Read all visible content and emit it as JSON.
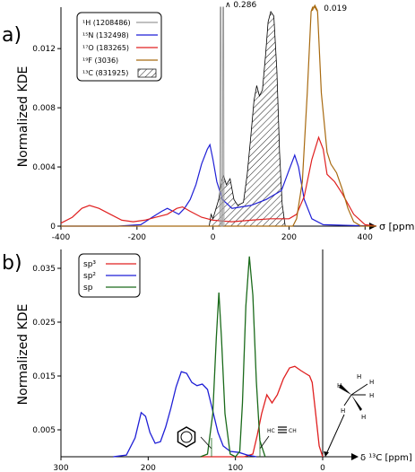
{
  "chart_data": [
    {
      "panel_label": "a)",
      "type": "line",
      "ylabel": "Normalized KDE",
      "xlabel": "σ [ppm]",
      "xlim": [
        -400,
        430
      ],
      "ylim": [
        0,
        0.0148
      ],
      "x_ticks": [
        "-400",
        "-200",
        "0",
        "200",
        "400"
      ],
      "y_ticks": [
        "0",
        "0.004",
        "0.008",
        "0.012"
      ],
      "legend_position": "top-left",
      "annotations": [
        {
          "text": "0.286",
          "x": 22,
          "y": 0.0148
        },
        {
          "text": "0.019",
          "x": 268,
          "y": 0.0148
        }
      ],
      "series": [
        {
          "name": "¹H (1208486)",
          "color": "#9a9a9a",
          "style": "line",
          "points": [
            [
              18,
              0
            ],
            [
              19,
              0.0148
            ],
            [
              21,
              0.0148
            ],
            [
              22,
              0
            ],
            [
              25,
              0
            ],
            [
              26,
              0.0148
            ],
            [
              28,
              0.0148
            ],
            [
              29,
              0
            ]
          ]
        },
        {
          "name": "¹⁵N (132498)",
          "color": "#1f1fd6",
          "style": "line",
          "points": [
            [
              -400,
              0
            ],
            [
              -250,
              0
            ],
            [
              -190,
              0.0001
            ],
            [
              -160,
              0.0006
            ],
            [
              -135,
              0.001
            ],
            [
              -120,
              0.0012
            ],
            [
              -105,
              0.001
            ],
            [
              -90,
              0.0008
            ],
            [
              -75,
              0.0012
            ],
            [
              -60,
              0.0018
            ],
            [
              -45,
              0.0028
            ],
            [
              -30,
              0.0042
            ],
            [
              -15,
              0.0052
            ],
            [
              -8,
              0.0055
            ],
            [
              0,
              0.0045
            ],
            [
              10,
              0.003
            ],
            [
              25,
              0.0018
            ],
            [
              50,
              0.0012
            ],
            [
              100,
              0.0014
            ],
            [
              140,
              0.0018
            ],
            [
              180,
              0.0024
            ],
            [
              200,
              0.0038
            ],
            [
              215,
              0.0048
            ],
            [
              225,
              0.004
            ],
            [
              240,
              0.0018
            ],
            [
              260,
              0.0005
            ],
            [
              290,
              0.0001
            ],
            [
              430,
              0
            ]
          ]
        },
        {
          "name": "¹⁷O (183265)",
          "color": "#e02020",
          "style": "line",
          "points": [
            [
              -400,
              0.0002
            ],
            [
              -370,
              0.0006
            ],
            [
              -345,
              0.0012
            ],
            [
              -325,
              0.0014
            ],
            [
              -300,
              0.0012
            ],
            [
              -270,
              0.0008
            ],
            [
              -240,
              0.0004
            ],
            [
              -210,
              0.0003
            ],
            [
              -180,
              0.0004
            ],
            [
              -150,
              0.0006
            ],
            [
              -120,
              0.0008
            ],
            [
              -95,
              0.0012
            ],
            [
              -80,
              0.0013
            ],
            [
              -60,
              0.001
            ],
            [
              -30,
              0.0006
            ],
            [
              0,
              0.0004
            ],
            [
              50,
              0.0003
            ],
            [
              100,
              0.0004
            ],
            [
              150,
              0.0005
            ],
            [
              200,
              0.0005
            ],
            [
              220,
              0.0008
            ],
            [
              240,
              0.002
            ],
            [
              260,
              0.0045
            ],
            [
              278,
              0.006
            ],
            [
              290,
              0.0052
            ],
            [
              300,
              0.0035
            ],
            [
              320,
              0.003
            ],
            [
              340,
              0.0022
            ],
            [
              370,
              0.0008
            ],
            [
              400,
              0.0001
            ],
            [
              430,
              0
            ]
          ]
        },
        {
          "name": "¹⁹F (3036)",
          "color": "#a86a10",
          "style": "line",
          "points": [
            [
              -400,
              0
            ],
            [
              210,
              0
            ],
            [
              220,
              0.0005
            ],
            [
              235,
              0.003
            ],
            [
              248,
              0.009
            ],
            [
              258,
              0.0145
            ],
            [
              262,
              0.0148
            ],
            [
              268,
              0.0148
            ],
            [
              275,
              0.0145
            ],
            [
              285,
              0.009
            ],
            [
              300,
              0.005
            ],
            [
              310,
              0.0042
            ],
            [
              325,
              0.0036
            ],
            [
              340,
              0.0025
            ],
            [
              355,
              0.0012
            ],
            [
              370,
              0.0003
            ],
            [
              390,
              0
            ],
            [
              430,
              0
            ]
          ]
        },
        {
          "name": "¹³C (831925)",
          "color": "#000000",
          "style": "hatched",
          "points": [
            [
              -10,
              0
            ],
            [
              -5,
              0.0008
            ],
            [
              0,
              0.0005
            ],
            [
              8,
              0.0012
            ],
            [
              15,
              0.0018
            ],
            [
              22,
              0.003
            ],
            [
              28,
              0.0034
            ],
            [
              35,
              0.0028
            ],
            [
              45,
              0.0032
            ],
            [
              55,
              0.0018
            ],
            [
              65,
              0.0014
            ],
            [
              80,
              0.0016
            ],
            [
              90,
              0.0035
            ],
            [
              100,
              0.0062
            ],
            [
              108,
              0.0085
            ],
            [
              115,
              0.0095
            ],
            [
              122,
              0.0088
            ],
            [
              130,
              0.0092
            ],
            [
              138,
              0.0115
            ],
            [
              145,
              0.0138
            ],
            [
              152,
              0.0145
            ],
            [
              160,
              0.0142
            ],
            [
              168,
              0.0105
            ],
            [
              175,
              0.005
            ],
            [
              182,
              0.0015
            ],
            [
              190,
              0
            ]
          ]
        }
      ]
    },
    {
      "panel_label": "b)",
      "type": "line",
      "ylabel": "Normalized KDE",
      "xlabel": "δ ¹³C [ppm]",
      "x_reversed": true,
      "xlim": [
        -10,
        300
      ],
      "ylim": [
        0,
        0.0385
      ],
      "x_ticks": [
        "300",
        "200",
        "100",
        "0"
      ],
      "y_ticks": [
        "0.005",
        "0.015",
        "0.025",
        "0.035"
      ],
      "legend_position": "top-left",
      "structure_labels": [
        "HC",
        "CH",
        "H",
        "H",
        "H",
        "H",
        "H",
        "H"
      ],
      "series": [
        {
          "name": "sp³",
          "color": "#e02020",
          "style": "line",
          "points": [
            [
              140,
              0
            ],
            [
              90,
              0
            ],
            [
              80,
              0.0005
            ],
            [
              75,
              0.004
            ],
            [
              70,
              0.008
            ],
            [
              64,
              0.0115
            ],
            [
              58,
              0.01
            ],
            [
              52,
              0.0115
            ],
            [
              45,
              0.0145
            ],
            [
              38,
              0.0165
            ],
            [
              32,
              0.0168
            ],
            [
              25,
              0.016
            ],
            [
              20,
              0.0155
            ],
            [
              15,
              0.015
            ],
            [
              12,
              0.0138
            ],
            [
              8,
              0.008
            ],
            [
              4,
              0.002
            ],
            [
              0,
              0
            ]
          ]
        },
        {
          "name": "sp²",
          "color": "#1f1fd6",
          "style": "line",
          "points": [
            [
              240,
              0
            ],
            [
              225,
              0.0003
            ],
            [
              215,
              0.0035
            ],
            [
              208,
              0.0082
            ],
            [
              203,
              0.0075
            ],
            [
              198,
              0.0045
            ],
            [
              192,
              0.0025
            ],
            [
              186,
              0.0028
            ],
            [
              180,
              0.0055
            ],
            [
              174,
              0.009
            ],
            [
              168,
              0.013
            ],
            [
              162,
              0.0158
            ],
            [
              156,
              0.0155
            ],
            [
              150,
              0.0138
            ],
            [
              144,
              0.0132
            ],
            [
              138,
              0.0135
            ],
            [
              132,
              0.0125
            ],
            [
              126,
              0.0085
            ],
            [
              120,
              0.0045
            ],
            [
              114,
              0.002
            ],
            [
              106,
              0.001
            ],
            [
              96,
              0.0008
            ],
            [
              86,
              0.0003
            ],
            [
              76,
              0
            ]
          ]
        },
        {
          "name": "sp",
          "color": "#1a6a1a",
          "style": "line",
          "points": [
            [
              140,
              0
            ],
            [
              132,
              0.0005
            ],
            [
              126,
              0.008
            ],
            [
              122,
              0.022
            ],
            [
              119,
              0.0305
            ],
            [
              116,
              0.022
            ],
            [
              112,
              0.008
            ],
            [
              106,
              0.0005
            ],
            [
              100,
              0
            ],
            [
              95,
              0.001
            ],
            [
              92,
              0.01
            ],
            [
              88,
              0.028
            ],
            [
              84,
              0.0372
            ],
            [
              80,
              0.03
            ],
            [
              76,
              0.014
            ],
            [
              72,
              0.003
            ],
            [
              66,
              0
            ]
          ]
        }
      ]
    }
  ]
}
